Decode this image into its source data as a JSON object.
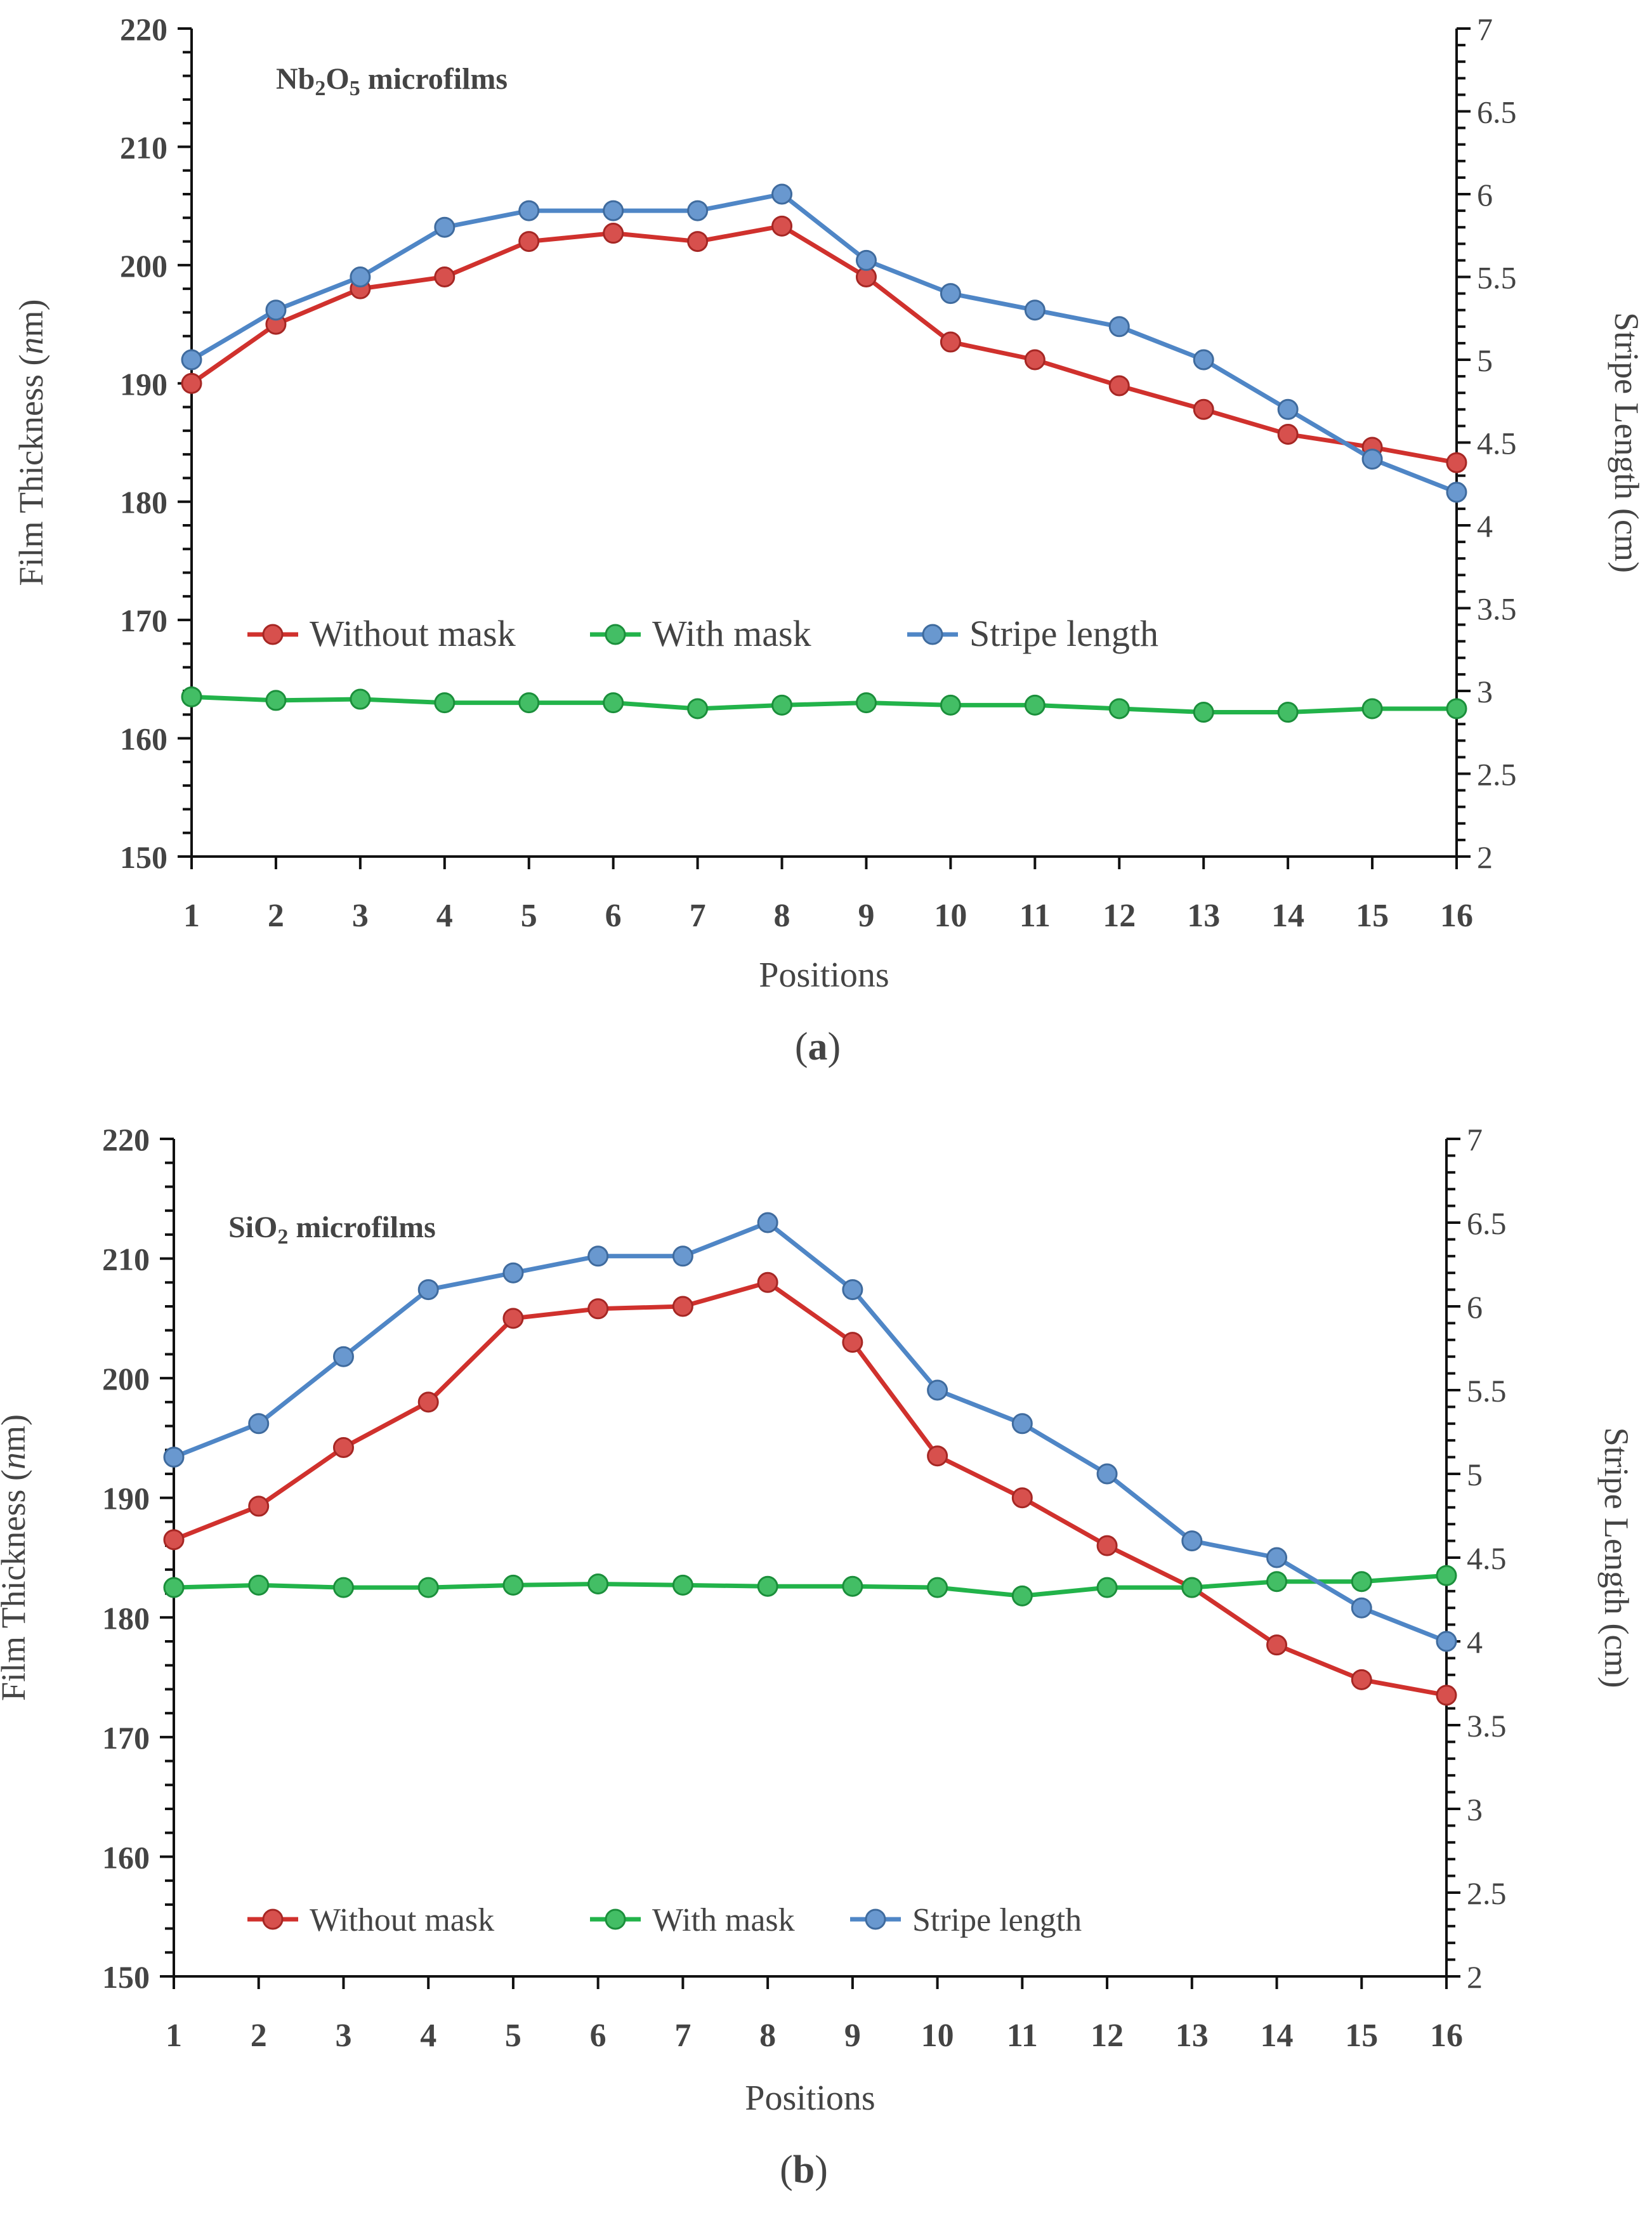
{
  "chart_data": [
    {
      "type": "line",
      "panel_label": "a",
      "annotation": {
        "base": "Nb",
        "sub1": "2",
        "mid": "O",
        "sub2": "5",
        "rest": " microfilms"
      },
      "xlabel": "Positions",
      "ylabel": {
        "prefix": "Film Thickness (",
        "italic": "n",
        "suffix": "m)"
      },
      "y2label": "Stripe Length (cm)",
      "x": [
        1,
        2,
        3,
        4,
        5,
        6,
        7,
        8,
        9,
        10,
        11,
        12,
        13,
        14,
        15,
        16
      ],
      "xlim": [
        1,
        16
      ],
      "ylim": [
        150,
        220
      ],
      "y2lim": [
        2,
        7
      ],
      "y_ticks": [
        "150",
        "160",
        "170",
        "180",
        "190",
        "200",
        "210",
        "220"
      ],
      "y2_ticks": [
        "2",
        "2.5",
        "3",
        "3.5",
        "4",
        "4.5",
        "5",
        "5.5",
        "6",
        "6.5",
        "7"
      ],
      "x_ticks": [
        "1",
        "2",
        "3",
        "4",
        "5",
        "6",
        "7",
        "8",
        "9",
        "10",
        "11",
        "12",
        "13",
        "14",
        "15",
        "16"
      ],
      "legend_position": "center-left",
      "series": [
        {
          "name": "Without mask",
          "axis": "left",
          "color": "#d0312d",
          "values": [
            190,
            195,
            198,
            199,
            202,
            202.7,
            202,
            203.3,
            199,
            193.5,
            192,
            189.8,
            187.8,
            185.7,
            184.6,
            183.3
          ]
        },
        {
          "name": "With mask",
          "axis": "left",
          "color": "#22b34a",
          "values": [
            163.5,
            163.2,
            163.3,
            163,
            163,
            163,
            162.5,
            162.8,
            163,
            162.8,
            162.8,
            162.5,
            162.2,
            162.2,
            162.5,
            162.5
          ]
        },
        {
          "name": "Stripe length",
          "axis": "right",
          "color": "#4f86c6",
          "values": [
            5.0,
            5.3,
            5.5,
            5.8,
            5.9,
            5.9,
            5.9,
            6.0,
            5.6,
            5.4,
            5.3,
            5.2,
            5.0,
            4.7,
            4.4,
            4.2
          ]
        }
      ]
    },
    {
      "type": "line",
      "panel_label": "b",
      "annotation": {
        "base": "SiO",
        "sub1": "2",
        "mid": "",
        "sub2": "",
        "rest": " microfilms"
      },
      "xlabel": "Positions",
      "ylabel": {
        "prefix": "Film Thickness (",
        "italic": "n",
        "suffix": "m)"
      },
      "y2label": "Stripe Length (cm)",
      "x": [
        1,
        2,
        3,
        4,
        5,
        6,
        7,
        8,
        9,
        10,
        11,
        12,
        13,
        14,
        15,
        16
      ],
      "xlim": [
        1,
        16
      ],
      "ylim": [
        150,
        220
      ],
      "y2lim": [
        2,
        7
      ],
      "y_ticks": [
        "150",
        "160",
        "170",
        "180",
        "190",
        "200",
        "210",
        "220"
      ],
      "y2_ticks": [
        "2",
        "2.5",
        "3",
        "3.5",
        "4",
        "4.5",
        "5",
        "5.5",
        "6",
        "6.5",
        "7"
      ],
      "x_ticks": [
        "1",
        "2",
        "3",
        "4",
        "5",
        "6",
        "7",
        "8",
        "9",
        "10",
        "11",
        "12",
        "13",
        "14",
        "15",
        "16"
      ],
      "legend_position": "bottom-left",
      "series": [
        {
          "name": "Without mask",
          "axis": "left",
          "color": "#d0312d",
          "values": [
            186.5,
            189.3,
            194.2,
            198,
            205,
            205.8,
            206,
            208,
            203,
            193.5,
            190,
            186,
            182.5,
            177.7,
            174.8,
            173.5
          ]
        },
        {
          "name": "With mask",
          "axis": "left",
          "color": "#22b34a",
          "values": [
            182.5,
            182.7,
            182.5,
            182.5,
            182.7,
            182.8,
            182.7,
            182.6,
            182.6,
            182.5,
            181.8,
            182.5,
            182.5,
            183,
            183,
            183.5
          ]
        },
        {
          "name": "Stripe length",
          "axis": "right",
          "color": "#4f86c6",
          "values": [
            5.1,
            5.3,
            5.7,
            6.1,
            6.2,
            6.3,
            6.3,
            6.5,
            6.1,
            5.5,
            5.3,
            5.0,
            4.6,
            4.5,
            4.2,
            4.0
          ]
        }
      ]
    }
  ]
}
